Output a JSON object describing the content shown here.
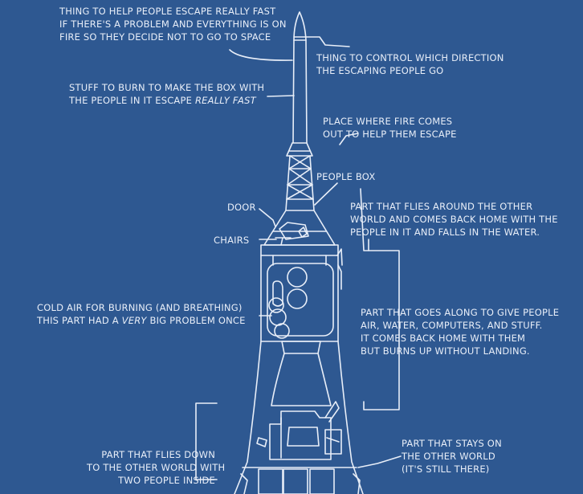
{
  "labels": {
    "escape_line1": "THING TO HELP PEOPLE ESCAPE REALLY FAST",
    "escape_line2": "IF THERE'S A PROBLEM AND EVERYTHING IS ON",
    "escape_line3": "FIRE SO THEY DECIDE NOT TO GO TO SPACE",
    "direction_line1": "THING TO CONTROL WHICH DIRECTION",
    "direction_line2": "THE ESCAPING PEOPLE GO",
    "burn_line1": "STUFF TO BURN TO MAKE THE BOX WITH",
    "burn_line2_a": "THE PEOPLE IN IT ESCAPE",
    "burn_line2_b": "REALLY FAST",
    "fire_line1": "PLACE WHERE FIRE COMES",
    "fire_line2": "OUT TO HELP THEM ESCAPE",
    "people_box": "PEOPLE BOX",
    "door": "DOOR",
    "chairs": "CHAIRS",
    "flies_line1": "PART THAT FLIES AROUND THE OTHER",
    "flies_line2": "WORLD AND COMES BACK HOME WITH THE",
    "flies_line3": "PEOPLE IN IT AND FALLS IN THE WATER.",
    "cold_line1": "COLD AIR FOR BURNING (AND BREATHING)",
    "cold_line2_a": "THIS PART HAD A",
    "cold_line2_b": "VERY",
    "cold_line2_c": "BIG PROBLEM ONCE",
    "service_line1": "PART THAT GOES ALONG TO GIVE PEOPLE",
    "service_line2": "AIR, WATER, COMPUTERS, AND STUFF.",
    "service_line3": "IT COMES BACK HOME WITH THEM",
    "service_line4": "BUT BURNS UP WITHOUT LANDING.",
    "lander_line1": "PART THAT FLIES DOWN",
    "lander_line2": "TO THE OTHER WORLD WITH",
    "lander_line3": "TWO PEOPLE INSIDE",
    "stays_line1": "PART THAT STAYS ON",
    "stays_line2": "THE OTHER WORLD",
    "stays_line3": "(IT'S STILL THERE)"
  },
  "colors": {
    "background": "#2e5891",
    "ink": "#e8eef8"
  }
}
